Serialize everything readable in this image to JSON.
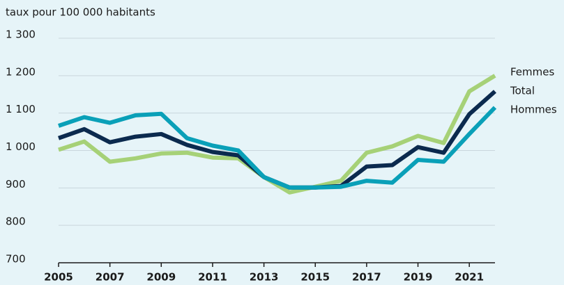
{
  "chart_data": {
    "type": "line",
    "y_label": "taux pour 100 000 habitants",
    "x": [
      2005,
      2006,
      2007,
      2008,
      2009,
      2010,
      2011,
      2012,
      2013,
      2014,
      2015,
      2016,
      2017,
      2018,
      2019,
      2020,
      2021,
      2022
    ],
    "series": [
      {
        "name": "Femmes",
        "color": "#a6d177",
        "values": [
          1002,
          1024,
          970,
          979,
          992,
          994,
          981,
          979,
          929,
          888,
          903,
          919,
          994,
          1011,
          1039,
          1020,
          1158,
          1200
        ]
      },
      {
        "name": "Total",
        "color": "#0b2a4e",
        "values": [
          1033,
          1057,
          1022,
          1037,
          1044,
          1015,
          996,
          987,
          929,
          901,
          901,
          905,
          957,
          961,
          1009,
          994,
          1097,
          1158
        ]
      },
      {
        "name": "Hommes",
        "color": "#0aa0b8",
        "values": [
          1066,
          1089,
          1074,
          1094,
          1098,
          1033,
          1013,
          1000,
          929,
          901,
          901,
          903,
          919,
          914,
          975,
          970,
          1044,
          1115
        ]
      }
    ],
    "xlim": [
      2005,
      2022
    ],
    "xticks": [
      2005,
      2007,
      2009,
      2011,
      2013,
      2015,
      2017,
      2019,
      2021
    ],
    "ylim": [
      700,
      1300
    ],
    "yticks": [
      700,
      800,
      900,
      {
        "value": 1000,
        "label": "1 000"
      },
      {
        "value": 1100,
        "label": "1 100"
      },
      {
        "value": 1200,
        "label": "1 200"
      },
      {
        "value": 1300,
        "label": "1 300"
      }
    ],
    "grid": true
  }
}
